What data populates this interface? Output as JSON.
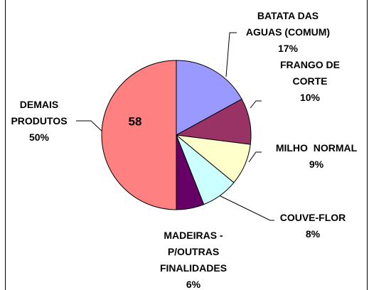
{
  "chart_data": {
    "type": "pie",
    "categories": [
      "BATATA DAS AGUAS (COMUM)",
      "FRANGO DE CORTE",
      "MILHO  NORMAL",
      "COUVE-FLOR",
      "MADEIRAS - P/OUTRAS FINALIDADES",
      "DEMAIS PRODUTOS"
    ],
    "values": [
      17,
      10,
      9,
      8,
      6,
      50
    ],
    "value_labels": [
      "17%",
      "10%",
      "9%",
      "8%",
      "6%",
      "50%"
    ],
    "colors": [
      "#9999ff",
      "#993366",
      "#ffffcc",
      "#ccffff",
      "#660066",
      "#ff8080"
    ],
    "annotation": "58"
  }
}
